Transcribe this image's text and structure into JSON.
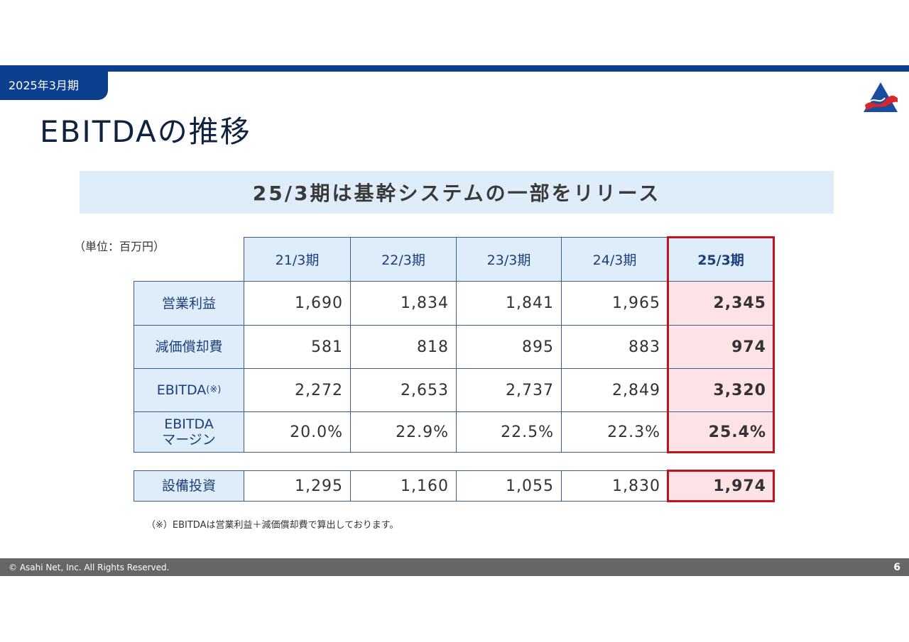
{
  "header": {
    "period": "2025年3月期",
    "title": "EBITDAの推移"
  },
  "subtitle": "25/3期は基幹システムの一部をリリース",
  "unit": "（単位：百万円）",
  "table": {
    "columns": [
      "21/3期",
      "22/3期",
      "23/3期",
      "24/3期",
      "25/3期"
    ],
    "rows": [
      {
        "label": "営業利益",
        "values": [
          "1,690",
          "1,834",
          "1,841",
          "1,965",
          "2,345"
        ]
      },
      {
        "label": "減価償却費",
        "values": [
          "581",
          "818",
          "895",
          "883",
          "974"
        ]
      },
      {
        "label": "EBITDA",
        "label_note": "(※)",
        "values": [
          "2,272",
          "2,653",
          "2,737",
          "2,849",
          "3,320"
        ]
      },
      {
        "label_line1": "EBITDA",
        "label_line2": "マージン",
        "values": [
          "20.0%",
          "22.9%",
          "22.5%",
          "22.3%",
          "25.4%"
        ]
      }
    ],
    "capex": {
      "label": "設備投資",
      "values": [
        "1,295",
        "1,160",
        "1,055",
        "1,830",
        "1,974"
      ]
    }
  },
  "footnote": "（※）EBITDAは営業利益＋減価償却費で算出しております。",
  "footer": {
    "copyright": "© Asahi Net, Inc. All Rights Reserved.",
    "page": "6"
  },
  "colors": {
    "brand": "#0d3f8f",
    "highlight_border": "#c0141c",
    "highlight_fill": "#fde3e6",
    "header_fill": "#deedf9"
  },
  "icons": {
    "logo": "asahi-net-logo"
  }
}
